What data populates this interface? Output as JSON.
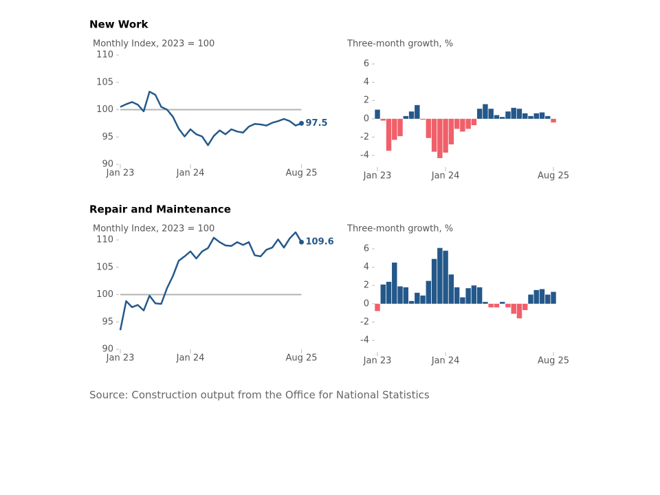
{
  "chart_data": [
    {
      "type": "line",
      "title": "New Work",
      "subtitle": "Monthly Index, 2023 = 100",
      "categories": [
        "Jan 23",
        null,
        null,
        null,
        null,
        null,
        null,
        null,
        null,
        null,
        null,
        null,
        "Jan 24",
        null,
        null,
        null,
        null,
        null,
        null,
        null,
        null,
        null,
        null,
        null,
        null,
        null,
        null,
        null,
        null,
        null,
        null,
        "Aug 25"
      ],
      "values": [
        100.5,
        101.0,
        101.4,
        100.9,
        99.7,
        103.3,
        102.7,
        100.5,
        100.0,
        98.7,
        96.5,
        95.1,
        96.4,
        95.5,
        95.1,
        93.5,
        95.2,
        96.2,
        95.5,
        96.4,
        96.0,
        95.8,
        96.9,
        97.4,
        97.3,
        97.1,
        97.6,
        97.9,
        98.3,
        97.9,
        97.1,
        97.5
      ],
      "color": "#24588a",
      "baseline": 100,
      "baseline_color": "#b3b3b3",
      "ylim": [
        90,
        110
      ],
      "yticks": [
        90,
        95,
        100,
        105,
        110
      ]
    },
    {
      "type": "bar",
      "subtitle": "Three-month growth, %",
      "categories": [
        "Jan 23",
        null,
        null,
        null,
        null,
        null,
        null,
        null,
        null,
        null,
        null,
        null,
        "Jan 24",
        null,
        null,
        null,
        null,
        null,
        null,
        null,
        null,
        null,
        null,
        null,
        null,
        null,
        null,
        null,
        null,
        null,
        null,
        "Aug 25"
      ],
      "values": [
        1.0,
        -0.2,
        -3.5,
        -2.3,
        -1.9,
        0.3,
        0.8,
        1.5,
        -0.1,
        -2.1,
        -3.6,
        -4.3,
        -3.7,
        -2.8,
        -1.1,
        -1.4,
        -1.1,
        -0.7,
        1.1,
        1.6,
        1.1,
        0.4,
        0.2,
        0.8,
        1.2,
        1.1,
        0.6,
        0.3,
        0.6,
        0.7,
        0.3,
        -0.4
      ],
      "positive_color": "#24588a",
      "negative_color": "#f0606a",
      "ylim": [
        -4,
        6
      ],
      "yticks": [
        -4,
        -2,
        0,
        2,
        4,
        6
      ]
    },
    {
      "type": "line",
      "title": "Repair and Maintenance",
      "subtitle": "Monthly Index, 2023 = 100",
      "categories": [
        "Jan 23",
        null,
        null,
        null,
        null,
        null,
        null,
        null,
        null,
        null,
        null,
        null,
        "Jan 24",
        null,
        null,
        null,
        null,
        null,
        null,
        null,
        null,
        null,
        null,
        null,
        null,
        null,
        null,
        null,
        null,
        null,
        null,
        "Aug 25"
      ],
      "values": [
        93.5,
        98.8,
        97.7,
        98.1,
        97.1,
        99.8,
        98.4,
        98.3,
        101.2,
        103.4,
        106.2,
        107.0,
        107.9,
        106.6,
        107.9,
        108.5,
        110.4,
        109.6,
        109.0,
        108.9,
        109.6,
        109.1,
        109.6,
        107.2,
        107.0,
        108.2,
        108.6,
        110.1,
        108.6,
        110.3,
        111.4,
        109.6
      ],
      "color": "#24588a",
      "baseline": 100,
      "baseline_color": "#b3b3b3",
      "ylim": [
        90,
        110
      ],
      "yticks": [
        90,
        95,
        100,
        105,
        110
      ]
    },
    {
      "type": "bar",
      "subtitle": "Three-month growth, %",
      "categories": [
        "Jan 23",
        null,
        null,
        null,
        null,
        null,
        null,
        null,
        null,
        null,
        null,
        null,
        "Jan 24",
        null,
        null,
        null,
        null,
        null,
        null,
        null,
        null,
        null,
        null,
        null,
        null,
        null,
        null,
        null,
        null,
        null,
        null,
        "Aug 25"
      ],
      "values": [
        -0.8,
        2.1,
        2.4,
        4.5,
        1.9,
        1.8,
        0.3,
        1.2,
        0.9,
        2.5,
        4.9,
        6.1,
        5.8,
        3.2,
        1.8,
        0.7,
        1.7,
        2.0,
        1.8,
        0.2,
        -0.4,
        -0.4,
        0.2,
        -0.4,
        -1.1,
        -1.6,
        -0.7,
        1.0,
        1.5,
        1.6,
        1.0,
        1.3
      ],
      "positive_color": "#24588a",
      "negative_color": "#f0606a",
      "ylim": [
        -4,
        6
      ],
      "yticks": [
        -4,
        -2,
        0,
        2,
        4,
        6
      ]
    }
  ],
  "source": "Source: Construction output from the Office for National Statistics"
}
